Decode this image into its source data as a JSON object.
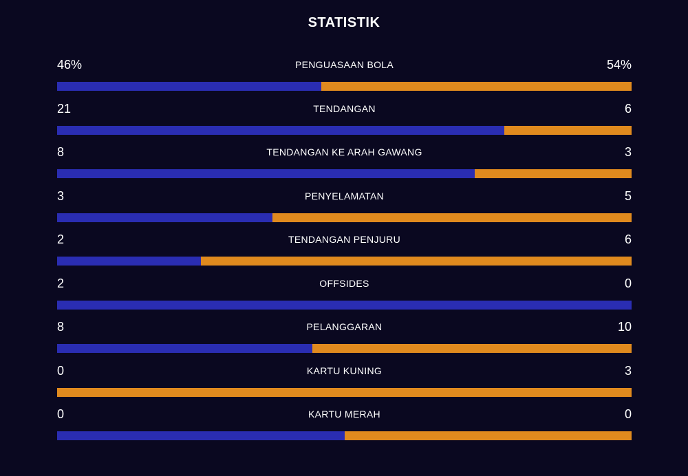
{
  "title": "STATISTIK",
  "colors": {
    "background": "#0a0820",
    "home": "#2a2db2",
    "away": "#e08a1e",
    "text": "#ffffff"
  },
  "stats": [
    {
      "label": "PENGUASAAN BOLA",
      "home": "46%",
      "away": "54%",
      "home_share": 0.46
    },
    {
      "label": "TENDANGAN",
      "home": "21",
      "away": "6",
      "home_share": 0.778
    },
    {
      "label": "TENDANGAN KE ARAH GAWANG",
      "home": "8",
      "away": "3",
      "home_share": 0.727
    },
    {
      "label": "PENYELAMATAN",
      "home": "3",
      "away": "5",
      "home_share": 0.375
    },
    {
      "label": "TENDANGAN PENJURU",
      "home": "2",
      "away": "6",
      "home_share": 0.25
    },
    {
      "label": "OFFSIDES",
      "home": "2",
      "away": "0",
      "home_share": 1.0
    },
    {
      "label": "PELANGGARAN",
      "home": "8",
      "away": "10",
      "home_share": 0.444
    },
    {
      "label": "KARTU KUNING",
      "home": "0",
      "away": "3",
      "home_share": 0.0
    },
    {
      "label": "KARTU MERAH",
      "home": "0",
      "away": "0",
      "home_share": 0.5
    }
  ]
}
